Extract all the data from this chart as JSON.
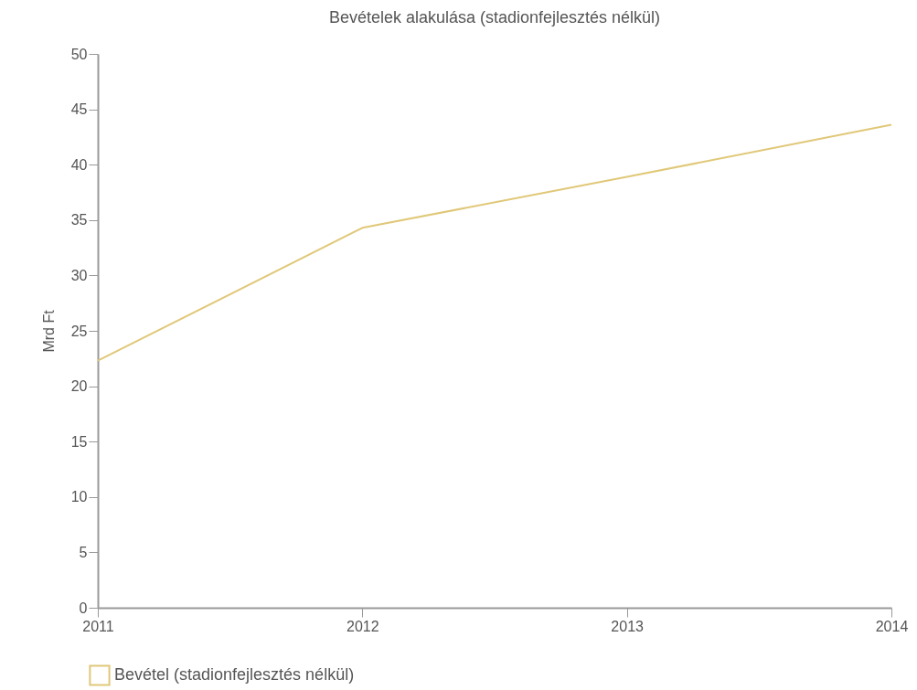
{
  "chart_data": {
    "type": "line",
    "title": "Bevételek alakulása (stadionfejlesztés nélkül)",
    "ylabel": "Mrd Ft",
    "x": [
      2011,
      2012,
      2013,
      2014
    ],
    "series": [
      {
        "name": "Bevétel (stadionfejlesztés nélkül)",
        "color": "#e0c878",
        "values": [
          22.3,
          34.3,
          38.9,
          43.6
        ]
      }
    ],
    "xlim": [
      2011,
      2014
    ],
    "xticks": [
      2011,
      2012,
      2013,
      2014
    ],
    "ylim": [
      0,
      50
    ],
    "yticks": [
      0,
      5,
      10,
      15,
      20,
      25,
      30,
      35,
      40,
      45,
      50
    ],
    "grid": false,
    "legend": "bottom left",
    "marker": "none",
    "line_style": "solid"
  }
}
